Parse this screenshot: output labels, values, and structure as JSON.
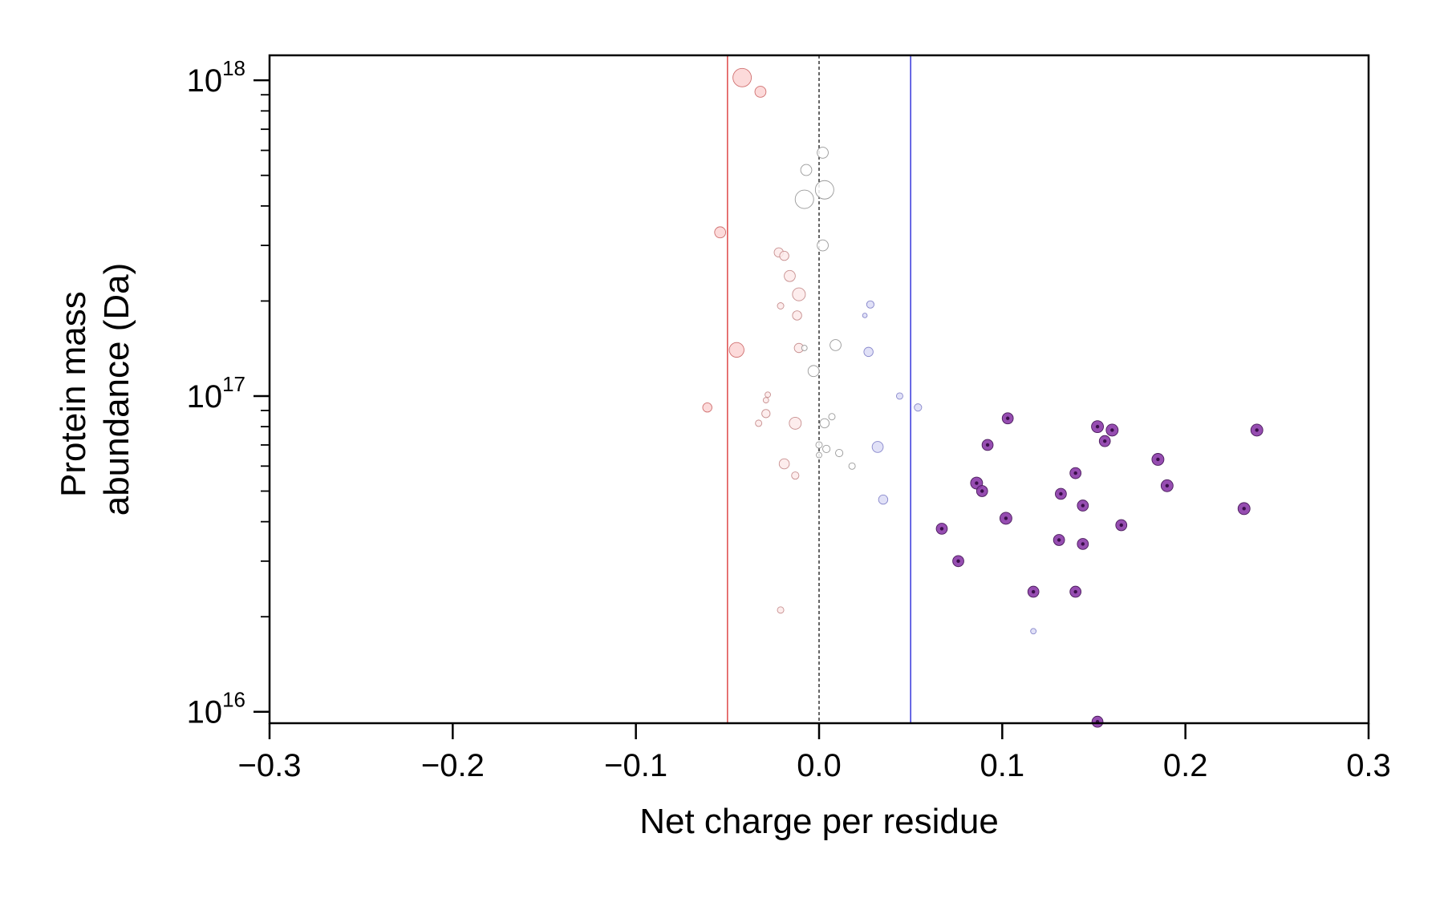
{
  "chart_data": {
    "type": "scatter",
    "xlabel": "Net charge per residue",
    "ylabel_lines": [
      "Protein mass",
      "abundance (Da)"
    ],
    "xlim": [
      -0.3,
      0.3
    ],
    "ylim": [
      9200000000000000.0,
      1.2e+18
    ],
    "yscale": "log",
    "xticks": [
      -0.3,
      -0.2,
      -0.1,
      0.0,
      0.1,
      0.2,
      0.3
    ],
    "xtick_labels": [
      "−0.3",
      "−0.2",
      "−0.1",
      "0.0",
      "0.1",
      "0.2",
      "0.3"
    ],
    "yticks": [
      {
        "value": 1e+16,
        "base": "10",
        "exp": "16"
      },
      {
        "value": 1e+17,
        "base": "10",
        "exp": "17"
      },
      {
        "value": 1e+18,
        "base": "10",
        "exp": "18"
      }
    ],
    "grid": false,
    "reference_lines": [
      {
        "x": -0.05,
        "color": "#e05555",
        "style": "solid"
      },
      {
        "x": 0.0,
        "color": "#000000",
        "style": "dashed"
      },
      {
        "x": 0.05,
        "color": "#4444dd",
        "style": "solid"
      }
    ],
    "colors": {
      "neg_strong": "#fbd3d3",
      "neg_weak": "#fdeaea",
      "neutral": "#ffffff",
      "pos_weak": "#dcdcf6",
      "high_pos": "#8b3aa8"
    },
    "points": [
      {
        "x": -0.042,
        "y": 1.02e+18,
        "size": 10,
        "group": "neg_strong"
      },
      {
        "x": -0.032,
        "y": 9.2e+17,
        "size": 6,
        "group": "neg_strong"
      },
      {
        "x": 0.002,
        "y": 5.9e+17,
        "size": 6,
        "group": "neutral"
      },
      {
        "x": -0.007,
        "y": 5.2e+17,
        "size": 6,
        "group": "neutral"
      },
      {
        "x": 0.003,
        "y": 4.5e+17,
        "size": 10,
        "group": "neutral"
      },
      {
        "x": -0.008,
        "y": 4.2e+17,
        "size": 10,
        "group": "neutral"
      },
      {
        "x": -0.054,
        "y": 3.3e+17,
        "size": 6,
        "group": "neg_strong"
      },
      {
        "x": 0.002,
        "y": 3e+17,
        "size": 6,
        "group": "neutral"
      },
      {
        "x": -0.022,
        "y": 2.85e+17,
        "size": 5,
        "group": "neg_weak"
      },
      {
        "x": -0.019,
        "y": 2.78e+17,
        "size": 5,
        "group": "neg_weak"
      },
      {
        "x": -0.016,
        "y": 2.4e+17,
        "size": 6,
        "group": "neg_weak"
      },
      {
        "x": -0.011,
        "y": 2.1e+17,
        "size": 7,
        "group": "neg_weak"
      },
      {
        "x": 0.028,
        "y": 1.95e+17,
        "size": 4,
        "group": "pos_weak"
      },
      {
        "x": -0.021,
        "y": 1.93e+17,
        "size": 3.5,
        "group": "neg_weak"
      },
      {
        "x": 0.025,
        "y": 1.8e+17,
        "size": 2.5,
        "group": "pos_weak"
      },
      {
        "x": -0.012,
        "y": 1.8e+17,
        "size": 5,
        "group": "neg_weak"
      },
      {
        "x": 0.009,
        "y": 1.45e+17,
        "size": 6,
        "group": "neutral"
      },
      {
        "x": -0.045,
        "y": 1.4e+17,
        "size": 8,
        "group": "neg_strong"
      },
      {
        "x": -0.011,
        "y": 1.42e+17,
        "size": 5,
        "group": "neg_weak"
      },
      {
        "x": -0.008,
        "y": 1.42e+17,
        "size": 3,
        "group": "neutral"
      },
      {
        "x": 0.027,
        "y": 1.38e+17,
        "size": 5,
        "group": "pos_weak"
      },
      {
        "x": -0.003,
        "y": 1.2e+17,
        "size": 6,
        "group": "neutral"
      },
      {
        "x": 0.044,
        "y": 1e+17,
        "size": 3.5,
        "group": "pos_weak"
      },
      {
        "x": -0.028,
        "y": 1.01e+17,
        "size": 3,
        "group": "neg_weak"
      },
      {
        "x": -0.029,
        "y": 9.7e+16,
        "size": 3,
        "group": "neg_weak"
      },
      {
        "x": -0.061,
        "y": 9.2e+16,
        "size": 5,
        "group": "neg_strong"
      },
      {
        "x": 0.054,
        "y": 9.2e+16,
        "size": 4,
        "group": "pos_weak"
      },
      {
        "x": -0.029,
        "y": 8.8e+16,
        "size": 4.5,
        "group": "neg_weak"
      },
      {
        "x": 0.007,
        "y": 8.6e+16,
        "size": 3.5,
        "group": "neutral"
      },
      {
        "x": -0.013,
        "y": 8.2e+16,
        "size": 6.5,
        "group": "neg_weak"
      },
      {
        "x": 0.003,
        "y": 8.2e+16,
        "size": 5,
        "group": "neutral"
      },
      {
        "x": -0.033,
        "y": 8.2e+16,
        "size": 3.5,
        "group": "neg_weak"
      },
      {
        "x": 0.032,
        "y": 6.9e+16,
        "size": 6,
        "group": "pos_weak"
      },
      {
        "x": 0.0,
        "y": 7e+16,
        "size": 3.5,
        "group": "neutral"
      },
      {
        "x": 0.004,
        "y": 6.8e+16,
        "size": 4,
        "group": "neutral"
      },
      {
        "x": 0.011,
        "y": 6.6e+16,
        "size": 4,
        "group": "neutral"
      },
      {
        "x": 0.0,
        "y": 6.5e+16,
        "size": 3,
        "group": "neutral"
      },
      {
        "x": -0.019,
        "y": 6.1e+16,
        "size": 5.5,
        "group": "neg_weak"
      },
      {
        "x": 0.018,
        "y": 6e+16,
        "size": 3.5,
        "group": "neutral"
      },
      {
        "x": -0.013,
        "y": 5.6e+16,
        "size": 4,
        "group": "neg_weak"
      },
      {
        "x": 0.035,
        "y": 4.7e+16,
        "size": 5,
        "group": "pos_weak"
      },
      {
        "x": -0.021,
        "y": 2.1e+16,
        "size": 3.5,
        "group": "neg_weak"
      },
      {
        "x": 0.117,
        "y": 1.8e+16,
        "size": 3,
        "group": "pos_weak"
      },
      {
        "x": 0.103,
        "y": 8.5e+16,
        "size": 6,
        "group": "high_pos"
      },
      {
        "x": 0.152,
        "y": 8e+16,
        "size": 6.5,
        "group": "high_pos"
      },
      {
        "x": 0.16,
        "y": 7.8e+16,
        "size": 6.5,
        "group": "high_pos"
      },
      {
        "x": 0.239,
        "y": 7.8e+16,
        "size": 6.5,
        "group": "high_pos"
      },
      {
        "x": 0.156,
        "y": 7.2e+16,
        "size": 6,
        "group": "high_pos"
      },
      {
        "x": 0.092,
        "y": 7e+16,
        "size": 6,
        "group": "high_pos"
      },
      {
        "x": 0.185,
        "y": 6.3e+16,
        "size": 6.5,
        "group": "high_pos"
      },
      {
        "x": 0.14,
        "y": 5.7e+16,
        "size": 6,
        "group": "high_pos"
      },
      {
        "x": 0.086,
        "y": 5.3e+16,
        "size": 6.5,
        "group": "high_pos"
      },
      {
        "x": 0.19,
        "y": 5.2e+16,
        "size": 6.5,
        "group": "high_pos"
      },
      {
        "x": 0.089,
        "y": 5e+16,
        "size": 6,
        "group": "high_pos"
      },
      {
        "x": 0.132,
        "y": 4.9e+16,
        "size": 6,
        "group": "high_pos"
      },
      {
        "x": 0.144,
        "y": 4.5e+16,
        "size": 6,
        "group": "high_pos"
      },
      {
        "x": 0.232,
        "y": 4.4e+16,
        "size": 6.5,
        "group": "high_pos"
      },
      {
        "x": 0.102,
        "y": 4.1e+16,
        "size": 6.5,
        "group": "high_pos"
      },
      {
        "x": 0.165,
        "y": 3.9e+16,
        "size": 6,
        "group": "high_pos"
      },
      {
        "x": 0.067,
        "y": 3.8e+16,
        "size": 6,
        "group": "high_pos"
      },
      {
        "x": 0.131,
        "y": 3.5e+16,
        "size": 6,
        "group": "high_pos"
      },
      {
        "x": 0.144,
        "y": 3.4e+16,
        "size": 6,
        "group": "high_pos"
      },
      {
        "x": 0.076,
        "y": 3e+16,
        "size": 6,
        "group": "high_pos"
      },
      {
        "x": 0.117,
        "y": 2.4e+16,
        "size": 6,
        "group": "high_pos"
      },
      {
        "x": 0.14,
        "y": 2.4e+16,
        "size": 6,
        "group": "high_pos"
      },
      {
        "x": 0.152,
        "y": 9300000000000000.0,
        "size": 6,
        "group": "high_pos"
      }
    ]
  }
}
